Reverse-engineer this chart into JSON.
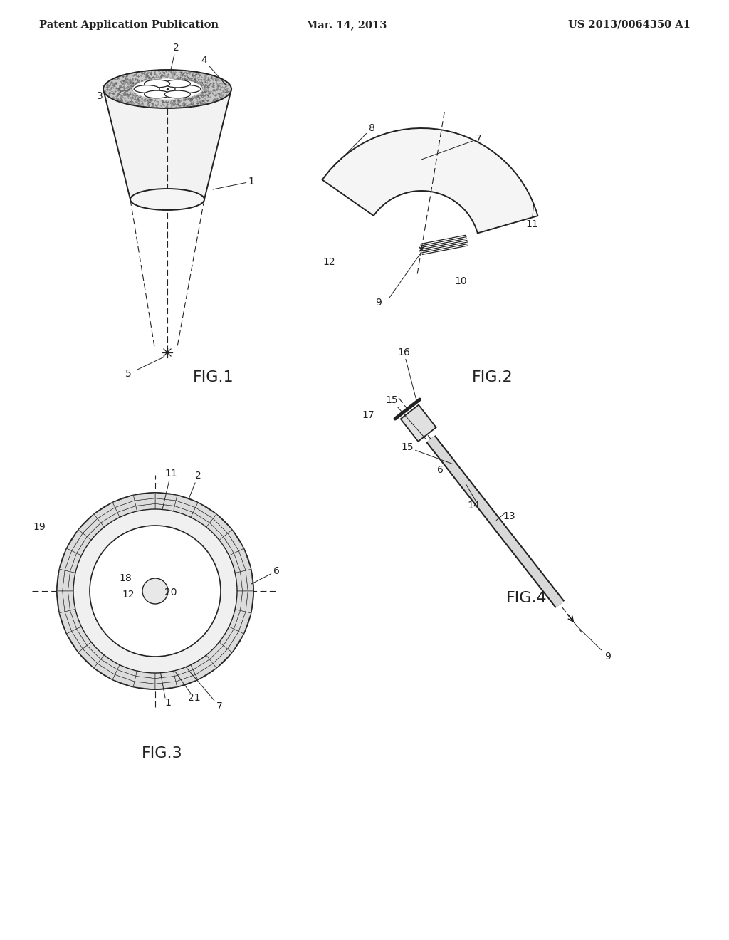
{
  "background_color": "#ffffff",
  "header_left": "Patent Application Publication",
  "header_center": "Mar. 14, 2013",
  "header_right": "US 2013/0064350 A1",
  "header_fontsize": 10.5,
  "fig_label_fontsize": 16,
  "annotation_fontsize": 10,
  "line_color": "#222222"
}
